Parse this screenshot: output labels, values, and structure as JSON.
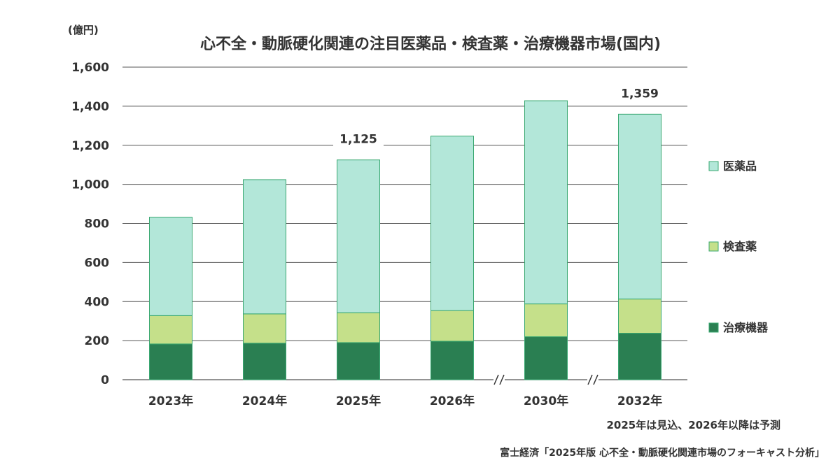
{
  "chart_data": {
    "type": "bar",
    "stacked": true,
    "title": "心不全・動脈硬化関連の注目医薬品・検査薬・治療機器市場(国内)",
    "unit_label": "(億円)",
    "categories": [
      "2023年",
      "2024年",
      "2025年",
      "2026年",
      "2030年",
      "2032年"
    ],
    "series": [
      {
        "name": "治療機器",
        "color": "#2a7f52",
        "values": [
          183,
          187,
          190,
          197,
          220,
          238
        ]
      },
      {
        "name": "検査薬",
        "color": "#c5e08a",
        "values": [
          145,
          150,
          153,
          157,
          168,
          175
        ]
      },
      {
        "name": "医薬品",
        "color": "#b3e7d9",
        "values": [
          504,
          687,
          782,
          893,
          1040,
          946
        ]
      }
    ],
    "totals": [
      832,
      1024,
      1125,
      1247,
      1428,
      1359
    ],
    "data_labels": [
      {
        "category": "2025年",
        "text": "1,125"
      },
      {
        "category": "2032年",
        "text": "1,359"
      }
    ],
    "ylim": [
      0,
      1600
    ],
    "yticks": [
      0,
      200,
      400,
      600,
      800,
      1000,
      1200,
      1400,
      1600
    ],
    "ytick_labels": [
      "0",
      "200",
      "400",
      "600",
      "800",
      "1,000",
      "1,200",
      "1,400",
      "1,600"
    ],
    "axis_breaks_after": [
      "2026年",
      "2030年"
    ],
    "grid": true,
    "legend_position": "right",
    "note": "2025年は見込、2026年以降は予測",
    "source": "富士経済「2025年版 心不全・動脈硬化関連市場のフォーキャスト分析」"
  }
}
